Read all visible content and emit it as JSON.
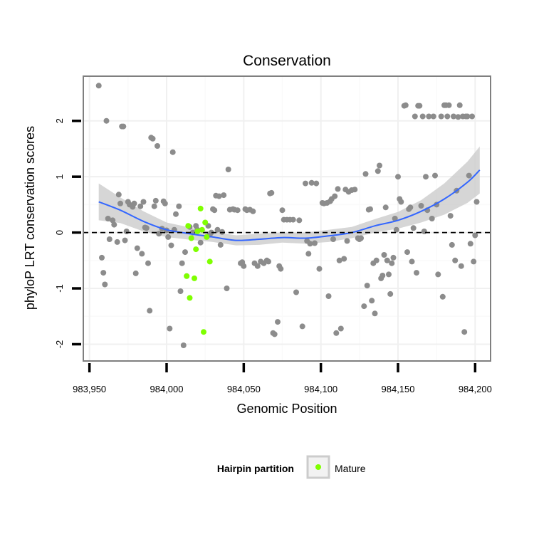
{
  "chart_data": {
    "type": "scatter",
    "title": "Conservation",
    "xlabel": "Genomic Position",
    "ylabel": "phyloP LRT conservation scores",
    "xlim": [
      983946,
      984210
    ],
    "ylim": [
      -2.3,
      2.8
    ],
    "x_ticks": [
      983950,
      984000,
      984050,
      984100,
      984150,
      984200
    ],
    "x_tick_labels": [
      "983,950",
      "984,000",
      "984,050",
      "984,100",
      "984,150",
      "984,200"
    ],
    "y_ticks": [
      -2,
      -1,
      0,
      1,
      2
    ],
    "y_tick_labels": [
      "-2",
      "-1",
      "0",
      "1",
      "2"
    ],
    "grid": true,
    "reference_line": {
      "y": 0,
      "style": "dashed"
    },
    "legend": {
      "title": "Hairpin partition",
      "placement": "bottom",
      "entries": [
        {
          "label": "Mature",
          "color": "#7fff00"
        }
      ]
    },
    "colors": {
      "points": "#8c8c8c",
      "mature": "#7fff00",
      "smooth": "#3366ff",
      "ribbon": "#cccccc"
    },
    "series": [
      {
        "name": "",
        "role": "all-points",
        "points": [
          [
            983956,
            2.63
          ],
          [
            983958,
            -0.45
          ],
          [
            983959,
            -0.72
          ],
          [
            983960,
            -0.93
          ],
          [
            983961,
            2.0
          ],
          [
            983962,
            0.25
          ],
          [
            983963,
            -0.12
          ],
          [
            983965,
            0.22
          ],
          [
            983966,
            0.14
          ],
          [
            983968,
            -0.17
          ],
          [
            983969,
            0.68
          ],
          [
            983970,
            0.52
          ],
          [
            983971,
            1.9
          ],
          [
            983972,
            1.9
          ],
          [
            983973,
            -0.14
          ],
          [
            983974,
            0.02
          ],
          [
            983975,
            0.55
          ],
          [
            983976,
            0.5
          ],
          [
            983978,
            0.46
          ],
          [
            983979,
            0.52
          ],
          [
            983980,
            -0.73
          ],
          [
            983981,
            -0.28
          ],
          [
            983983,
            0.47
          ],
          [
            983984,
            -0.38
          ],
          [
            983985,
            0.55
          ],
          [
            983986,
            0.09
          ],
          [
            983987,
            0.08
          ],
          [
            983988,
            -0.55
          ],
          [
            983989,
            -1.4
          ],
          [
            983990,
            1.7
          ],
          [
            983991,
            1.68
          ],
          [
            983992,
            0.47
          ],
          [
            983993,
            0.57
          ],
          [
            983994,
            1.55
          ],
          [
            983995,
            -0.02
          ],
          [
            983997,
            0.07
          ],
          [
            983998,
            0.56
          ],
          [
            983999,
            0.52
          ],
          [
            984000,
            0.04
          ],
          [
            984001,
            -0.08
          ],
          [
            984002,
            -1.72
          ],
          [
            984003,
            -0.23
          ],
          [
            984004,
            1.44
          ],
          [
            984005,
            0.05
          ],
          [
            984006,
            0.33
          ],
          [
            984008,
            0.47
          ],
          [
            984009,
            -1.05
          ],
          [
            984010,
            -0.55
          ],
          [
            984011,
            -2.02
          ],
          [
            984012,
            -0.35
          ],
          [
            984013,
            -0.78
          ],
          [
            984015,
            0.1
          ],
          [
            984017,
            0.0
          ],
          [
            984019,
            0.12
          ],
          [
            984020,
            0.05
          ],
          [
            984022,
            -0.18
          ],
          [
            984027,
            0.12
          ],
          [
            984028,
            -0.04
          ],
          [
            984029,
            0.0
          ],
          [
            984030,
            0.42
          ],
          [
            984031,
            0.4
          ],
          [
            984032,
            0.66
          ],
          [
            984033,
            0.05
          ],
          [
            984034,
            0.65
          ],
          [
            984035,
            -0.22
          ],
          [
            984036,
            0.01
          ],
          [
            984037,
            0.67
          ],
          [
            984039,
            -1.0
          ],
          [
            984040,
            1.13
          ],
          [
            984041,
            0.41
          ],
          [
            984043,
            0.42
          ],
          [
            984044,
            0.41
          ],
          [
            984046,
            0.4
          ],
          [
            984048,
            -0.55
          ],
          [
            984049,
            -0.53
          ],
          [
            984050,
            -0.6
          ],
          [
            984051,
            0.42
          ],
          [
            984052,
            0.4
          ],
          [
            984054,
            0.41
          ],
          [
            984056,
            0.38
          ],
          [
            984057,
            -0.55
          ],
          [
            984059,
            -0.6
          ],
          [
            984061,
            -0.52
          ],
          [
            984063,
            -0.55
          ],
          [
            984065,
            -0.5
          ],
          [
            984066,
            -0.52
          ],
          [
            984067,
            0.7
          ],
          [
            984068,
            0.71
          ],
          [
            984069,
            -1.8
          ],
          [
            984070,
            -1.82
          ],
          [
            984072,
            -1.6
          ],
          [
            984073,
            -0.6
          ],
          [
            984074,
            -0.65
          ],
          [
            984075,
            0.4
          ],
          [
            984076,
            0.23
          ],
          [
            984078,
            0.23
          ],
          [
            984080,
            0.23
          ],
          [
            984082,
            0.23
          ],
          [
            984084,
            -1.07
          ],
          [
            984086,
            0.22
          ],
          [
            984088,
            -1.68
          ],
          [
            984090,
            0.88
          ],
          [
            984091,
            -0.15
          ],
          [
            984092,
            -0.38
          ],
          [
            984093,
            -0.2
          ],
          [
            984094,
            0.89
          ],
          [
            984096,
            -0.19
          ],
          [
            984097,
            0.88
          ],
          [
            984099,
            -0.65
          ],
          [
            984101,
            0.53
          ],
          [
            984102,
            0.52
          ],
          [
            984104,
            0.53
          ],
          [
            984105,
            -1.14
          ],
          [
            984106,
            0.56
          ],
          [
            984107,
            0.6
          ],
          [
            984108,
            -0.12
          ],
          [
            984109,
            0.65
          ],
          [
            984110,
            -1.8
          ],
          [
            984111,
            0.78
          ],
          [
            984112,
            -0.5
          ],
          [
            984113,
            -1.72
          ],
          [
            984115,
            -0.47
          ],
          [
            984116,
            0.77
          ],
          [
            984117,
            -0.15
          ],
          [
            984118,
            0.73
          ],
          [
            984120,
            0.76
          ],
          [
            984122,
            0.77
          ],
          [
            984124,
            -0.1
          ],
          [
            984125,
            -0.12
          ],
          [
            984126,
            -0.1
          ],
          [
            984128,
            -1.32
          ],
          [
            984129,
            1.05
          ],
          [
            984130,
            -0.95
          ],
          [
            984131,
            0.41
          ],
          [
            984132,
            0.42
          ],
          [
            984133,
            -1.22
          ],
          [
            984134,
            -0.55
          ],
          [
            984135,
            -1.45
          ],
          [
            984136,
            -0.5
          ],
          [
            984137,
            1.1
          ],
          [
            984138,
            1.2
          ],
          [
            984139,
            -0.82
          ],
          [
            984140,
            -0.77
          ],
          [
            984141,
            -0.4
          ],
          [
            984142,
            0.45
          ],
          [
            984143,
            -0.5
          ],
          [
            984144,
            -0.75
          ],
          [
            984145,
            -1.1
          ],
          [
            984146,
            -0.55
          ],
          [
            984147,
            -0.45
          ],
          [
            984148,
            0.25
          ],
          [
            984149,
            0.05
          ],
          [
            984150,
            1.0
          ],
          [
            984151,
            0.6
          ],
          [
            984152,
            0.55
          ],
          [
            984154,
            2.27
          ],
          [
            984155,
            2.28
          ],
          [
            984156,
            -0.35
          ],
          [
            984157,
            0.42
          ],
          [
            984158,
            0.45
          ],
          [
            984159,
            -0.52
          ],
          [
            984160,
            0.08
          ],
          [
            984161,
            2.08
          ],
          [
            984162,
            -0.72
          ],
          [
            984163,
            2.27
          ],
          [
            984164,
            2.27
          ],
          [
            984165,
            0.48
          ],
          [
            984166,
            2.08
          ],
          [
            984167,
            0.02
          ],
          [
            984168,
            1.0
          ],
          [
            984169,
            0.4
          ],
          [
            984170,
            2.08
          ],
          [
            984172,
            0.25
          ],
          [
            984173,
            2.08
          ],
          [
            984174,
            1.02
          ],
          [
            984175,
            0.5
          ],
          [
            984176,
            -0.75
          ],
          [
            984178,
            2.08
          ],
          [
            984179,
            -1.15
          ],
          [
            984180,
            2.28
          ],
          [
            984181,
            2.28
          ],
          [
            984182,
            2.08
          ],
          [
            984183,
            2.28
          ],
          [
            984184,
            0.3
          ],
          [
            984185,
            -0.22
          ],
          [
            984186,
            2.08
          ],
          [
            984187,
            -0.5
          ],
          [
            984188,
            0.75
          ],
          [
            984189,
            2.07
          ],
          [
            984190,
            2.28
          ],
          [
            984191,
            -0.6
          ],
          [
            984192,
            2.08
          ],
          [
            984193,
            -1.78
          ],
          [
            984194,
            2.08
          ],
          [
            984195,
            2.08
          ],
          [
            984196,
            1.02
          ],
          [
            984197,
            -0.2
          ],
          [
            984198,
            2.08
          ],
          [
            984199,
            -0.52
          ],
          [
            984200,
            -0.05
          ],
          [
            984201,
            0.55
          ]
        ]
      },
      {
        "name": "Mature",
        "role": "highlight",
        "points": [
          [
            984013,
            -0.78
          ],
          [
            984014,
            0.12
          ],
          [
            984015,
            -1.17
          ],
          [
            984016,
            -0.1
          ],
          [
            984018,
            -0.82
          ],
          [
            984019,
            -0.3
          ],
          [
            984020,
            0.02
          ],
          [
            984022,
            0.43
          ],
          [
            984023,
            0.05
          ],
          [
            984024,
            -1.78
          ],
          [
            984025,
            0.18
          ],
          [
            984026,
            -0.08
          ],
          [
            984028,
            -0.52
          ]
        ]
      }
    ],
    "smooth": {
      "name": "",
      "x": [
        983956,
        983970,
        983985,
        984000,
        984015,
        984030,
        984045,
        984060,
        984075,
        984090,
        984105,
        984120,
        984135,
        984150,
        984165,
        984180,
        984195,
        984203
      ],
      "y": [
        0.55,
        0.4,
        0.2,
        0.05,
        -0.02,
        -0.08,
        -0.14,
        -0.12,
        -0.09,
        -0.1,
        -0.06,
        0.0,
        0.12,
        0.22,
        0.38,
        0.6,
        0.9,
        1.12
      ],
      "lower": [
        0.22,
        0.17,
        0.02,
        -0.08,
        -0.13,
        -0.17,
        -0.23,
        -0.22,
        -0.18,
        -0.2,
        -0.17,
        -0.1,
        0.0,
        0.07,
        0.18,
        0.32,
        0.53,
        0.7
      ],
      "upper": [
        0.88,
        0.63,
        0.38,
        0.18,
        0.09,
        0.01,
        -0.05,
        -0.02,
        0.0,
        0.0,
        0.05,
        0.1,
        0.24,
        0.37,
        0.58,
        0.88,
        1.27,
        1.54
      ]
    }
  }
}
